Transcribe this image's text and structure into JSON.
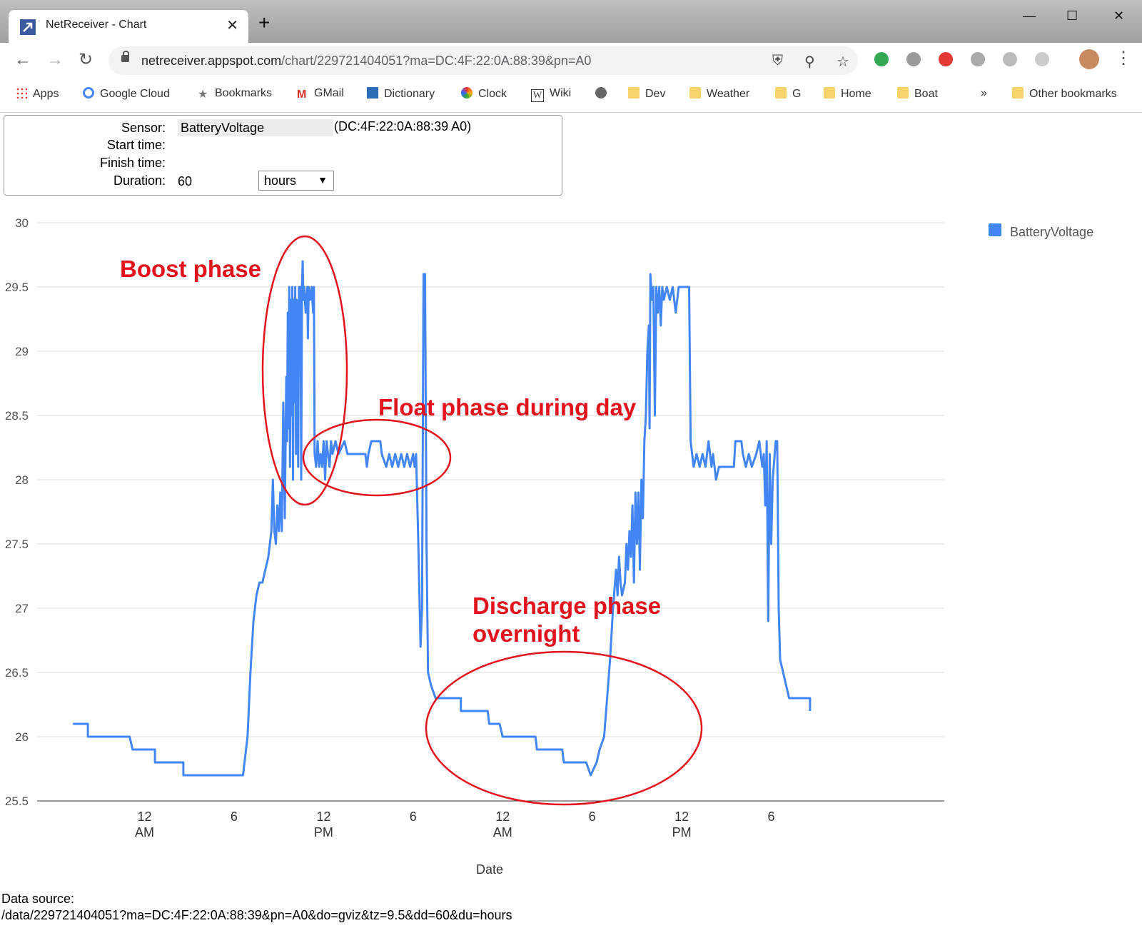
{
  "browser": {
    "tab_title": "NetReceiver - Chart",
    "url_host": "netreceiver.appspot.com",
    "url_path": "/chart/229721404051?ma=DC:4F:22:0A:88:39&pn=A0",
    "bookmarks": [
      "Apps",
      "Google Cloud",
      "Bookmarks",
      "GMail",
      "Dictionary",
      "Clock",
      "Wiki",
      "Dev",
      "Weather",
      "G",
      "Home",
      "Boat"
    ],
    "other_bookmarks": "Other bookmarks",
    "more_bookmarks": "»"
  },
  "form": {
    "sensor_label": "Sensor:",
    "sensor_value": "BatteryVoltage",
    "sensor_id": "(DC:4F:22:0A:88:39 A0)",
    "start_label": "Start time:",
    "finish_label": "Finish time:",
    "duration_label": "Duration:",
    "duration_value": "60",
    "duration_unit": "hours"
  },
  "data_source": {
    "label": "Data source:",
    "url": "/data/229721404051?ma=DC:4F:22:0A:88:39&pn=A0&do=gviz&tz=9.5&dd=60&du=hours"
  },
  "colors": {
    "series": "#4285f4",
    "annotation": "#e3131d",
    "grid": "#dcdcdc"
  },
  "chart_data": {
    "type": "line",
    "xlabel": "Date",
    "ylabel": "",
    "ylim": [
      25.5,
      30
    ],
    "yticks": [
      25.5,
      26,
      26.5,
      27,
      27.5,
      28,
      28.5,
      29,
      29.5,
      30
    ],
    "xlim_hours": [
      -7.2,
      53.6
    ],
    "xticks": [
      {
        "h": 0,
        "l1": "12",
        "l2": "AM"
      },
      {
        "h": 6,
        "l1": "6",
        "l2": ""
      },
      {
        "h": 12,
        "l1": "12",
        "l2": "PM"
      },
      {
        "h": 18,
        "l1": "6",
        "l2": ""
      },
      {
        "h": 24,
        "l1": "12",
        "l2": "AM"
      },
      {
        "h": 30,
        "l1": "6",
        "l2": ""
      },
      {
        "h": 36,
        "l1": "12",
        "l2": "PM"
      },
      {
        "h": 42,
        "l1": "6",
        "l2": ""
      }
    ],
    "legend_position": "top-right",
    "series": [
      {
        "name": "BatteryVoltage",
        "points": [
          [
            -4.8,
            26.1
          ],
          [
            -3.8,
            26.1
          ],
          [
            -3.8,
            26.0
          ],
          [
            -1.0,
            26.0
          ],
          [
            -0.8,
            25.9
          ],
          [
            0.7,
            25.9
          ],
          [
            0.7,
            25.8
          ],
          [
            2.6,
            25.8
          ],
          [
            2.6,
            25.7
          ],
          [
            6.6,
            25.7
          ],
          [
            6.9,
            26.0
          ],
          [
            7.1,
            26.5
          ],
          [
            7.3,
            26.9
          ],
          [
            7.5,
            27.1
          ],
          [
            7.7,
            27.2
          ],
          [
            7.9,
            27.2
          ],
          [
            8.1,
            27.3
          ],
          [
            8.3,
            27.4
          ],
          [
            8.5,
            27.6
          ],
          [
            8.6,
            28.0
          ],
          [
            8.7,
            27.6
          ],
          [
            8.8,
            27.5
          ],
          [
            8.9,
            27.8
          ],
          [
            9.0,
            27.6
          ],
          [
            9.1,
            27.9
          ],
          [
            9.2,
            27.6
          ],
          [
            9.3,
            28.6
          ],
          [
            9.35,
            28.2
          ],
          [
            9.4,
            27.7
          ],
          [
            9.5,
            28.8
          ],
          [
            9.55,
            28.3
          ],
          [
            9.6,
            29.3
          ],
          [
            9.65,
            28.4
          ],
          [
            9.7,
            29.5
          ],
          [
            9.75,
            28.1
          ],
          [
            9.8,
            29.4
          ],
          [
            9.85,
            28.5
          ],
          [
            9.9,
            29.5
          ],
          [
            9.95,
            28.0
          ],
          [
            10.0,
            29.4
          ],
          [
            10.05,
            28.6
          ],
          [
            10.1,
            29.5
          ],
          [
            10.15,
            28.2
          ],
          [
            10.2,
            29.4
          ],
          [
            10.3,
            28.1
          ],
          [
            10.35,
            29.5
          ],
          [
            10.4,
            29.3
          ],
          [
            10.45,
            29.5
          ],
          [
            10.5,
            28.0
          ],
          [
            10.55,
            29.5
          ],
          [
            10.6,
            29.7
          ],
          [
            10.65,
            29.4
          ],
          [
            10.7,
            29.5
          ],
          [
            10.8,
            29.3
          ],
          [
            10.9,
            29.5
          ],
          [
            10.95,
            29.1
          ],
          [
            11.0,
            29.5
          ],
          [
            11.1,
            29.4
          ],
          [
            11.2,
            29.5
          ],
          [
            11.3,
            29.3
          ],
          [
            11.35,
            29.5
          ],
          [
            11.4,
            28.2
          ],
          [
            11.5,
            28.1
          ],
          [
            11.6,
            28.3
          ],
          [
            11.7,
            28.1
          ],
          [
            11.8,
            28.2
          ],
          [
            11.9,
            28.1
          ],
          [
            12.0,
            28.3
          ],
          [
            12.1,
            28.0
          ],
          [
            12.2,
            28.3
          ],
          [
            12.4,
            28.1
          ],
          [
            12.5,
            28.3
          ],
          [
            12.6,
            28.2
          ],
          [
            12.8,
            28.3
          ],
          [
            13.0,
            28.2
          ],
          [
            13.4,
            28.3
          ],
          [
            13.6,
            28.2
          ],
          [
            14.8,
            28.2
          ],
          [
            14.9,
            28.1
          ],
          [
            15.0,
            28.2
          ],
          [
            15.2,
            28.3
          ],
          [
            15.8,
            28.3
          ],
          [
            15.9,
            28.2
          ],
          [
            16.2,
            28.1
          ],
          [
            16.4,
            28.2
          ],
          [
            16.6,
            28.1
          ],
          [
            16.8,
            28.2
          ],
          [
            17.0,
            28.1
          ],
          [
            17.2,
            28.2
          ],
          [
            17.4,
            28.1
          ],
          [
            17.6,
            28.2
          ],
          [
            17.8,
            28.1
          ],
          [
            18.0,
            28.2
          ],
          [
            18.1,
            28.1
          ],
          [
            18.2,
            28.2
          ],
          [
            18.35,
            27.5
          ],
          [
            18.5,
            26.7
          ],
          [
            18.6,
            27.0
          ],
          [
            18.7,
            29.6
          ],
          [
            18.8,
            29.6
          ],
          [
            18.9,
            27.5
          ],
          [
            19.0,
            26.5
          ],
          [
            19.2,
            26.4
          ],
          [
            19.5,
            26.3
          ],
          [
            20.5,
            26.3
          ],
          [
            21.2,
            26.3
          ],
          [
            21.2,
            26.2
          ],
          [
            22.0,
            26.2
          ],
          [
            23.0,
            26.2
          ],
          [
            23.1,
            26.1
          ],
          [
            23.8,
            26.1
          ],
          [
            24.0,
            26.0
          ],
          [
            26.2,
            26.0
          ],
          [
            26.3,
            25.9
          ],
          [
            28.0,
            25.9
          ],
          [
            28.1,
            25.8
          ],
          [
            29.6,
            25.8
          ],
          [
            29.9,
            25.7
          ],
          [
            30.3,
            25.8
          ],
          [
            30.5,
            25.9
          ],
          [
            30.8,
            26.0
          ],
          [
            31.0,
            26.3
          ],
          [
            31.2,
            26.6
          ],
          [
            31.4,
            27.0
          ],
          [
            31.6,
            27.3
          ],
          [
            31.7,
            27.1
          ],
          [
            31.8,
            27.4
          ],
          [
            31.9,
            27.2
          ],
          [
            32.0,
            27.1
          ],
          [
            32.2,
            27.2
          ],
          [
            32.3,
            27.5
          ],
          [
            32.4,
            27.3
          ],
          [
            32.5,
            27.6
          ],
          [
            32.6,
            27.4
          ],
          [
            32.7,
            27.8
          ],
          [
            32.8,
            27.2
          ],
          [
            32.9,
            27.9
          ],
          [
            33.0,
            27.5
          ],
          [
            33.1,
            27.9
          ],
          [
            33.2,
            27.3
          ],
          [
            33.3,
            28.0
          ],
          [
            33.4,
            27.7
          ],
          [
            33.5,
            28.3
          ],
          [
            33.6,
            28.5
          ],
          [
            33.7,
            29.0
          ],
          [
            33.8,
            29.2
          ],
          [
            33.85,
            28.4
          ],
          [
            33.9,
            29.6
          ],
          [
            34.0,
            29.4
          ],
          [
            34.1,
            29.5
          ],
          [
            34.2,
            28.5
          ],
          [
            34.3,
            29.5
          ],
          [
            34.4,
            29.3
          ],
          [
            34.5,
            29.5
          ],
          [
            34.6,
            29.2
          ],
          [
            34.7,
            29.5
          ],
          [
            34.8,
            29.4
          ],
          [
            35.0,
            29.5
          ],
          [
            35.2,
            29.4
          ],
          [
            35.4,
            29.5
          ],
          [
            35.6,
            29.3
          ],
          [
            35.8,
            29.5
          ],
          [
            36.5,
            29.5
          ],
          [
            36.6,
            28.3
          ],
          [
            36.7,
            28.2
          ],
          [
            36.8,
            28.1
          ],
          [
            37.0,
            28.2
          ],
          [
            37.2,
            28.1
          ],
          [
            37.4,
            28.2
          ],
          [
            37.6,
            28.1
          ],
          [
            37.8,
            28.3
          ],
          [
            38.0,
            28.1
          ],
          [
            38.1,
            28.2
          ],
          [
            38.3,
            28.0
          ],
          [
            38.5,
            28.1
          ],
          [
            39.5,
            28.1
          ],
          [
            39.6,
            28.3
          ],
          [
            40.0,
            28.3
          ],
          [
            40.1,
            28.2
          ],
          [
            40.3,
            28.1
          ],
          [
            40.5,
            28.2
          ],
          [
            40.7,
            28.1
          ],
          [
            41.0,
            28.2
          ],
          [
            41.2,
            28.3
          ],
          [
            41.4,
            28.1
          ],
          [
            41.5,
            28.2
          ],
          [
            41.6,
            27.8
          ],
          [
            41.7,
            28.3
          ],
          [
            41.8,
            26.9
          ],
          [
            41.9,
            28.2
          ],
          [
            42.0,
            27.5
          ],
          [
            42.1,
            28.0
          ],
          [
            42.3,
            28.3
          ],
          [
            42.4,
            28.3
          ],
          [
            42.5,
            27.0
          ],
          [
            42.6,
            26.6
          ],
          [
            42.8,
            26.5
          ],
          [
            43.0,
            26.4
          ],
          [
            43.2,
            26.3
          ],
          [
            44.4,
            26.3
          ],
          [
            44.6,
            26.3
          ],
          [
            44.6,
            26.2
          ]
        ]
      }
    ],
    "annotations": [
      {
        "text": "Boost phase"
      },
      {
        "text": "Float phase during day"
      },
      {
        "text": "Discharge phase overnight"
      }
    ]
  }
}
